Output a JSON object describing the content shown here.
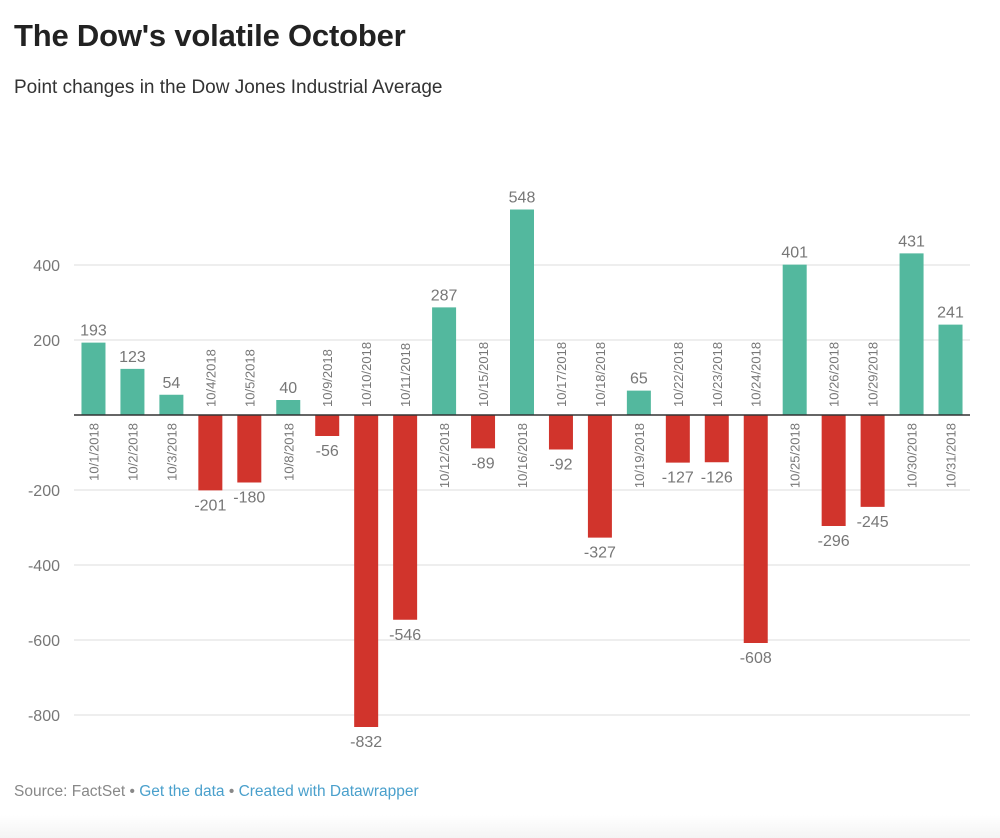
{
  "header": {
    "title": "The Dow's volatile October",
    "subtitle": "Point changes in the Dow Jones Industrial Average"
  },
  "footer": {
    "source": "Source: FactSet",
    "separator": "•",
    "get_data_link": "Get the data",
    "created_with_link": "Created with Datawrapper"
  },
  "colors": {
    "positive": "#53b89e",
    "negative": "#d1342c",
    "grid": "#dddddd",
    "zero_line": "#333333",
    "label": "#777777"
  },
  "chart_data": {
    "type": "bar",
    "title": "The Dow's volatile October",
    "subtitle": "Point changes in the Dow Jones Industrial Average",
    "xlabel": "",
    "ylabel": "",
    "ylim": [
      -850,
      560
    ],
    "yticks": [
      400,
      200,
      -200,
      -400,
      -600,
      -800
    ],
    "ytick_labels": [
      "400",
      "200",
      "-200",
      "-400",
      "-600",
      "-800"
    ],
    "grid": true,
    "categories": [
      "10/1/2018",
      "10/2/2018",
      "10/3/2018",
      "10/4/2018",
      "10/5/2018",
      "10/8/2018",
      "10/9/2018",
      "10/10/2018",
      "10/11/2018",
      "10/12/2018",
      "10/15/2018",
      "10/16/2018",
      "10/17/2018",
      "10/18/2018",
      "10/19/2018",
      "10/22/2018",
      "10/23/2018",
      "10/24/2018",
      "10/25/2018",
      "10/26/2018",
      "10/29/2018",
      "10/30/2018",
      "10/31/2018"
    ],
    "values": [
      193,
      123,
      54,
      -201,
      -180,
      40,
      -56,
      -832,
      -546,
      287,
      -89,
      548,
      -92,
      -327,
      65,
      -127,
      -126,
      -608,
      401,
      -296,
      -245,
      431,
      241
    ],
    "value_labels": [
      "193",
      "123",
      "54",
      "-201",
      "-180",
      "40",
      "-56",
      "-832",
      "-546",
      "287",
      "-89",
      "548",
      "-92",
      "-327",
      "65",
      "-127",
      "-126",
      "-608",
      "401",
      "-296",
      "-245",
      "431",
      "241"
    ],
    "legend": "none"
  }
}
